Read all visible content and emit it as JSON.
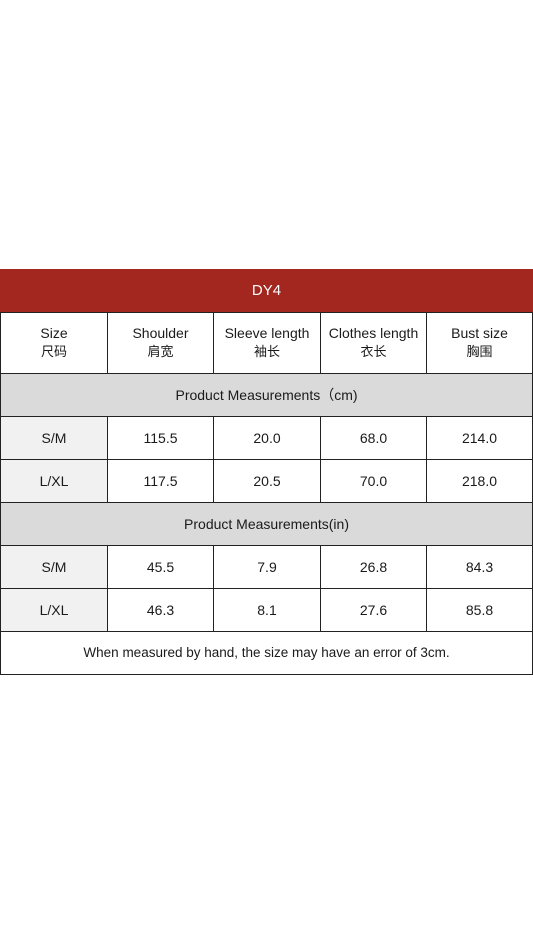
{
  "table": {
    "title": "DY4",
    "headers": [
      {
        "en": "Size",
        "zh": "尺码"
      },
      {
        "en": "Shoulder",
        "zh": "肩宽"
      },
      {
        "en": "Sleeve length",
        "zh": "袖长"
      },
      {
        "en": "Clothes length",
        "zh": "衣长"
      },
      {
        "en": "Bust size",
        "zh": "胸围"
      }
    ],
    "sections": [
      {
        "label": "Product Measurements（cm)",
        "rows": [
          [
            "S/M",
            "115.5",
            "20.0",
            "68.0",
            "214.0"
          ],
          [
            "L/XL",
            "117.5",
            "20.5",
            "70.0",
            "218.0"
          ]
        ]
      },
      {
        "label": "Product Measurements(in)",
        "rows": [
          [
            "S/M",
            "45.5",
            "7.9",
            "26.8",
            "84.3"
          ],
          [
            "L/XL",
            "46.3",
            "8.1",
            "27.6",
            "85.8"
          ]
        ]
      }
    ],
    "note": "When measured by hand, the size may have an error of 3cm."
  }
}
